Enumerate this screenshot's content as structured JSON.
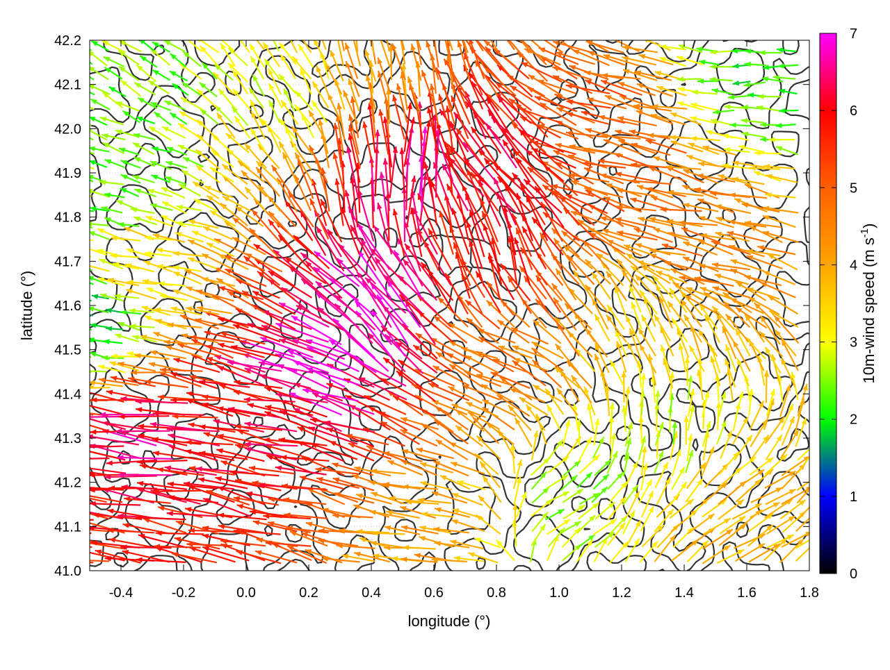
{
  "chart_data": {
    "type": "vector-field",
    "xlabel": "longitude (°)",
    "ylabel": "latitude (°)",
    "xlim": [
      -0.5,
      1.8
    ],
    "ylim": [
      41.0,
      42.2
    ],
    "xticks": [
      "-0.4",
      "-0.2",
      "0.0",
      "0.2",
      "0.4",
      "0.6",
      "0.8",
      "1.0",
      "1.2",
      "1.4",
      "1.6",
      "1.8"
    ],
    "xtick_values": [
      -0.4,
      -0.2,
      0.0,
      0.2,
      0.4,
      0.6,
      0.8,
      1.0,
      1.2,
      1.4,
      1.6,
      1.8
    ],
    "yticks": [
      "41.0",
      "41.1",
      "41.2",
      "41.3",
      "41.4",
      "41.5",
      "41.6",
      "41.7",
      "41.8",
      "41.9",
      "42.0",
      "42.1",
      "42.2"
    ],
    "ytick_values": [
      41.0,
      41.1,
      41.2,
      41.3,
      41.4,
      41.5,
      41.6,
      41.7,
      41.8,
      41.9,
      42.0,
      42.1,
      42.2
    ],
    "grid": true,
    "colorbar": {
      "label_main": "10m-wind speed (m s",
      "label_sup": "-1",
      "label_end": ")",
      "range": [
        0,
        7
      ],
      "ticks": [
        "0",
        "1",
        "2",
        "3",
        "4",
        "5",
        "6",
        "7"
      ],
      "tick_values": [
        0,
        1,
        2,
        3,
        4,
        5,
        6,
        7
      ],
      "stops": [
        {
          "v": 0,
          "color": "#000000"
        },
        {
          "v": 1,
          "color": "#0000ff"
        },
        {
          "v": 2,
          "color": "#00ff00"
        },
        {
          "v": 3,
          "color": "#ffff00"
        },
        {
          "v": 4,
          "color": "#ffa500"
        },
        {
          "v": 5,
          "color": "#ff6000"
        },
        {
          "v": 6,
          "color": "#ff0000"
        },
        {
          "v": 7,
          "color": "#ff00ff"
        }
      ]
    },
    "contour_color": "#333333",
    "wind_regions": [
      {
        "lon": -0.3,
        "lat": 41.3,
        "u": -5.5,
        "v": 0.6,
        "speed": 6.4
      },
      {
        "lon": 0.1,
        "lat": 41.3,
        "u": -5.0,
        "v": 0.8,
        "speed": 6.0
      },
      {
        "lon": 0.3,
        "lat": 41.45,
        "u": -4.2,
        "v": 1.4,
        "speed": 6.8
      },
      {
        "lon": 0.45,
        "lat": 41.55,
        "u": -2.0,
        "v": 2.5,
        "speed": 6.9
      },
      {
        "lon": 0.5,
        "lat": 41.85,
        "u": 0.2,
        "v": 3.5,
        "speed": 6.5
      },
      {
        "lon": 0.8,
        "lat": 41.7,
        "u": -0.8,
        "v": 3.0,
        "speed": 5.8
      },
      {
        "lon": 0.85,
        "lat": 41.85,
        "u": -1.5,
        "v": 1.8,
        "speed": 6.2
      },
      {
        "lon": 1.25,
        "lat": 41.95,
        "u": -4.5,
        "v": 1.0,
        "speed": 5.0
      },
      {
        "lon": 1.45,
        "lat": 41.75,
        "u": -4.0,
        "v": 0.8,
        "speed": 4.6
      },
      {
        "lon": 1.3,
        "lat": 41.55,
        "u": -1.0,
        "v": 2.0,
        "speed": 3.5
      },
      {
        "lon": 1.35,
        "lat": 41.3,
        "u": 0.3,
        "v": 2.0,
        "speed": 2.8
      },
      {
        "lon": 1.55,
        "lat": 41.1,
        "u": 2.5,
        "v": 1.6,
        "speed": 3.8
      },
      {
        "lon": 1.0,
        "lat": 41.15,
        "u": 1.2,
        "v": 0.8,
        "speed": 2.6
      },
      {
        "lon": 0.85,
        "lat": 41.45,
        "u": -2.0,
        "v": 0.8,
        "speed": 4.6
      },
      {
        "lon": 0.6,
        "lat": 41.1,
        "u": -3.5,
        "v": 0.5,
        "speed": 4.0
      },
      {
        "lon": -0.35,
        "lat": 41.85,
        "u": -1.5,
        "v": 0.4,
        "speed": 2.2
      },
      {
        "lon": -0.3,
        "lat": 42.1,
        "u": -1.0,
        "v": 0.6,
        "speed": 2.4
      },
      {
        "lon": 0.15,
        "lat": 42.05,
        "u": -0.8,
        "v": 1.2,
        "speed": 3.0
      },
      {
        "lon": 0.45,
        "lat": 42.1,
        "u": -0.3,
        "v": 1.8,
        "speed": 4.2
      },
      {
        "lon": -0.45,
        "lat": 41.55,
        "u": -1.2,
        "v": 0.2,
        "speed": 1.8
      },
      {
        "lon": -0.3,
        "lat": 41.7,
        "u": -2.5,
        "v": 0.6,
        "speed": 3.5
      },
      {
        "lon": 1.65,
        "lat": 42.1,
        "u": -1.5,
        "v": 0.0,
        "speed": 2.2
      }
    ]
  }
}
